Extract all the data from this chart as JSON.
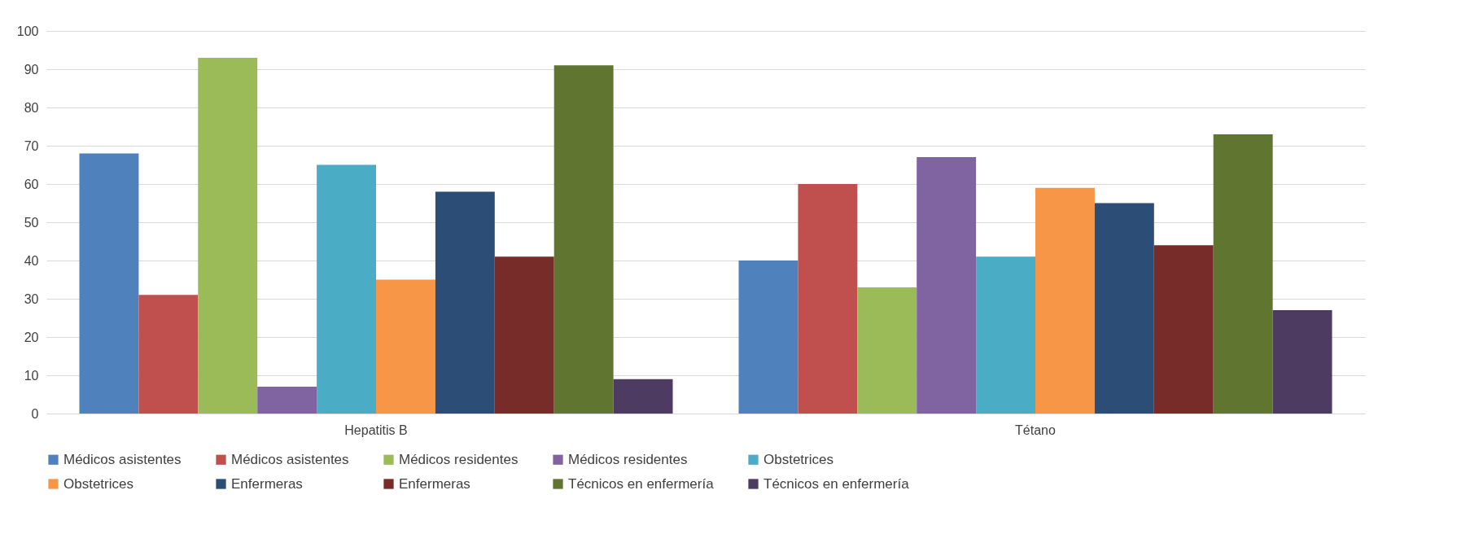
{
  "chart_data": {
    "type": "bar",
    "categories": [
      "Hepatitis B",
      "Tétano"
    ],
    "series": [
      {
        "name": "Médicos asistentes",
        "color": "#4f81bd",
        "values": [
          68,
          40
        ]
      },
      {
        "name": "Médicos asistentes",
        "color": "#c0504d",
        "values": [
          31,
          60
        ]
      },
      {
        "name": "Médicos residentes",
        "color": "#9bbb59",
        "values": [
          93,
          33
        ]
      },
      {
        "name": "Médicos residentes",
        "color": "#8064a2",
        "values": [
          7,
          67
        ]
      },
      {
        "name": "Obstetrices",
        "color": "#4bacc6",
        "values": [
          65,
          41
        ]
      },
      {
        "name": "Obstetrices",
        "color": "#f79646",
        "values": [
          35,
          59
        ]
      },
      {
        "name": "Enfermeras",
        "color": "#2c4d75",
        "values": [
          58,
          55
        ]
      },
      {
        "name": "Enfermeras",
        "color": "#772c2a",
        "values": [
          41,
          44
        ]
      },
      {
        "name": "Técnicos en enfermería",
        "color": "#5f7530",
        "values": [
          91,
          73
        ]
      },
      {
        "name": "Técnicos en enfermería",
        "color": "#4d3b62",
        "values": [
          9,
          27
        ]
      }
    ],
    "ylim": [
      0,
      100
    ],
    "yticks": [
      0,
      10,
      20,
      30,
      40,
      50,
      60,
      70,
      80,
      90,
      100
    ],
    "grid": "y",
    "legend": "bottom"
  }
}
